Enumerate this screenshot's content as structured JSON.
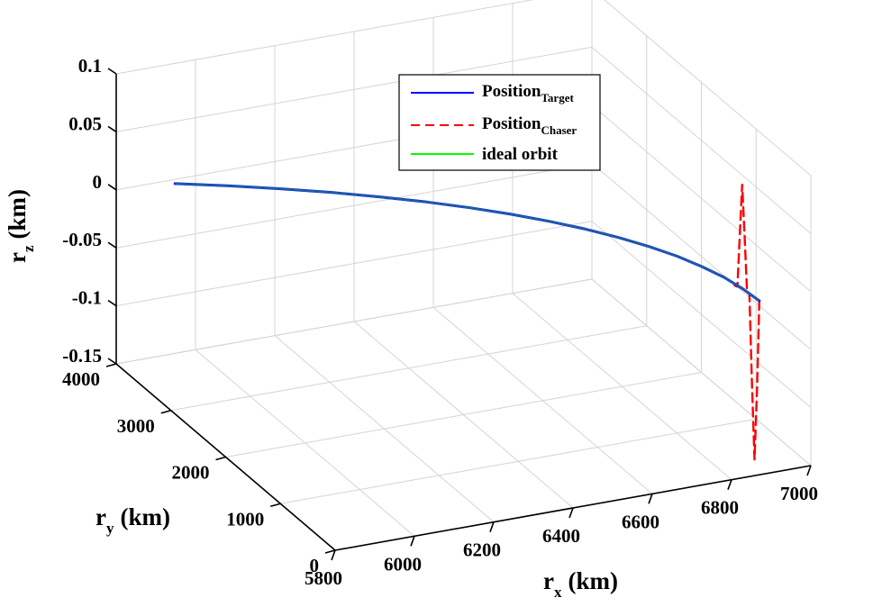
{
  "chart_data": {
    "type": "line3d",
    "axes": {
      "x": {
        "label": "r",
        "label_sub": "x",
        "unit": "(km)",
        "ticks": [
          "5800",
          "6000",
          "6200",
          "6400",
          "6600",
          "6800",
          "7000"
        ]
      },
      "y": {
        "label": "r",
        "label_sub": "y",
        "unit": "(km)",
        "ticks": [
          "0",
          "1000",
          "2000",
          "3000",
          "4000"
        ]
      },
      "z": {
        "label": "r",
        "label_sub": "z",
        "unit": "(km)",
        "ticks": [
          "-0.15",
          "-0.1",
          "-0.05",
          "0",
          "0.05",
          "0.1"
        ]
      }
    },
    "xlim": [
      5800,
      7000
    ],
    "ylim": [
      0,
      4000
    ],
    "zlim": [
      -0.15,
      0.1
    ],
    "grid": true,
    "legend_position": "top-center",
    "series": [
      {
        "name": "Position",
        "name_sub": "Target",
        "color": "#0000ff",
        "style": "solid",
        "points": [
          [
            6870,
            0,
            0
          ],
          [
            6865,
            263,
            0
          ],
          [
            6854,
            526,
            0
          ],
          [
            6834,
            789,
            0
          ],
          [
            6808,
            1050,
            0
          ],
          [
            6773,
            1309,
            0
          ],
          [
            6732,
            1566,
            0
          ],
          [
            6683,
            1821,
            0
          ],
          [
            6627,
            2072,
            0
          ],
          [
            6564,
            2320,
            0
          ],
          [
            6494,
            2564,
            0
          ],
          [
            6418,
            2803,
            0
          ],
          [
            6334,
            3038,
            0
          ],
          [
            6245,
            3268,
            0
          ],
          [
            6149,
            3493,
            0
          ],
          [
            6047,
            3712,
            0
          ],
          [
            5938,
            3924,
            0
          ]
        ]
      },
      {
        "name": "Position",
        "name_sub": "Chaser",
        "color": "#ff0000",
        "style": "dashed",
        "points": [
          [
            6870,
            0,
            0
          ],
          [
            6870,
            40,
            -0.075
          ],
          [
            6869,
            80,
            -0.14
          ],
          [
            6868,
            120,
            -0.075
          ],
          [
            6867,
            160,
            0
          ],
          [
            6866,
            195,
            0
          ],
          [
            6865,
            230,
            0.045
          ],
          [
            6863,
            262,
            0.09
          ],
          [
            6861,
            292,
            0.045
          ],
          [
            6859,
            320,
            0
          ],
          [
            6856,
            350,
            0
          ]
        ]
      },
      {
        "name": "ideal orbit",
        "color": "#00ff00",
        "style": "solid",
        "points": [
          [
            6870,
            0,
            0
          ],
          [
            6865,
            263,
            0
          ],
          [
            6854,
            526,
            0
          ],
          [
            6834,
            789,
            0
          ],
          [
            6808,
            1050,
            0
          ],
          [
            6773,
            1309,
            0
          ],
          [
            6732,
            1566,
            0
          ],
          [
            6683,
            1821,
            0
          ],
          [
            6627,
            2072,
            0
          ],
          [
            6564,
            2320,
            0
          ],
          [
            6494,
            2564,
            0
          ],
          [
            6418,
            2803,
            0
          ],
          [
            6334,
            3038,
            0
          ],
          [
            6245,
            3268,
            0
          ],
          [
            6149,
            3493,
            0
          ],
          [
            6047,
            3712,
            0
          ],
          [
            5938,
            3924,
            0
          ]
        ]
      }
    ]
  }
}
